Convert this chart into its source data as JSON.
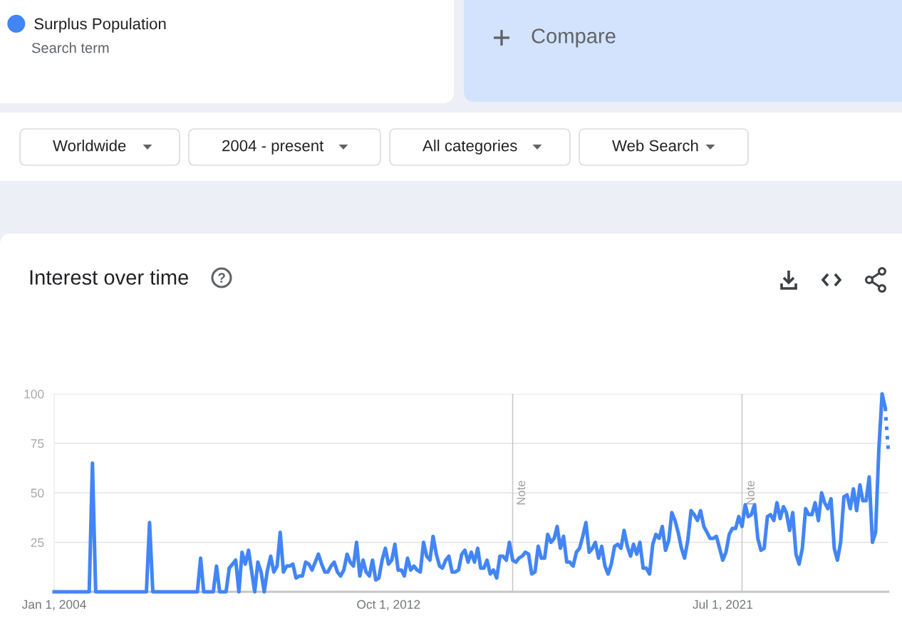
{
  "chart_data": {
    "type": "line",
    "title": "Interest over time",
    "series": [
      {
        "name": "Surplus Population",
        "color": "#4285f4",
        "x": [
          "2004-01",
          "2004-12",
          "2005-01",
          "2005-02",
          "2006-06",
          "2006-07",
          "2006-08",
          "2007-10",
          "2007-11",
          "2007-12",
          "2008-03",
          "2008-04",
          "2008-05",
          "2008-07",
          "2008-08",
          "2008-09",
          "2008-10",
          "2008-11",
          "2008-12",
          "2009-01",
          "2009-02",
          "2009-03",
          "2009-04",
          "2009-05",
          "2009-06",
          "2009-07",
          "2009-08",
          "2009-09",
          "2009-10",
          "2009-11",
          "2009-12",
          "2010-01",
          "2010-02",
          "2010-03",
          "2010-04",
          "2010-05",
          "2010-06",
          "2010-07",
          "2010-08",
          "2010-09",
          "2010-10",
          "2010-11",
          "2010-12",
          "2011-01",
          "2011-02",
          "2011-03",
          "2011-04",
          "2011-05",
          "2011-06",
          "2011-07",
          "2011-08",
          "2011-09",
          "2011-10",
          "2011-11",
          "2011-12",
          "2012-01",
          "2012-02",
          "2012-03",
          "2012-04",
          "2012-05",
          "2012-06",
          "2012-07",
          "2012-08",
          "2012-09",
          "2012-10",
          "2012-11",
          "2012-12",
          "2013-01",
          "2013-02",
          "2013-03",
          "2013-04",
          "2013-05",
          "2013-06",
          "2013-07",
          "2013-08",
          "2013-09",
          "2013-10",
          "2013-11",
          "2013-12",
          "2014-01",
          "2014-02",
          "2014-03",
          "2014-04",
          "2014-05",
          "2014-06",
          "2014-07",
          "2014-08",
          "2014-09",
          "2014-10",
          "2014-11",
          "2014-12",
          "2015-01",
          "2015-02",
          "2015-03",
          "2015-04",
          "2015-05",
          "2015-06",
          "2015-07",
          "2015-08",
          "2015-09",
          "2015-10",
          "2015-11",
          "2015-12",
          "2016-01",
          "2016-02",
          "2016-03",
          "2016-04",
          "2016-05",
          "2016-06",
          "2016-07",
          "2016-08",
          "2016-09",
          "2016-10",
          "2016-11",
          "2016-12",
          "2017-01",
          "2017-02",
          "2017-03",
          "2017-04",
          "2017-05",
          "2017-06",
          "2017-07",
          "2017-08",
          "2017-09",
          "2017-10",
          "2017-11",
          "2017-12",
          "2018-01",
          "2018-02",
          "2018-03",
          "2018-04",
          "2018-05",
          "2018-06",
          "2018-07",
          "2018-08",
          "2018-09",
          "2018-10",
          "2018-11",
          "2018-12",
          "2019-01",
          "2019-02",
          "2019-03",
          "2019-04",
          "2019-05",
          "2019-06",
          "2019-07",
          "2019-08",
          "2019-09",
          "2019-10",
          "2019-11",
          "2019-12",
          "2020-01",
          "2020-02",
          "2020-03",
          "2020-04",
          "2020-05",
          "2020-06",
          "2020-07",
          "2020-08",
          "2020-09",
          "2020-10",
          "2020-11",
          "2020-12",
          "2021-01",
          "2021-02",
          "2021-03",
          "2021-04",
          "2021-05",
          "2021-06",
          "2021-07",
          "2021-08",
          "2021-09",
          "2021-10",
          "2021-11",
          "2021-12",
          "2022-01",
          "2022-02",
          "2022-03",
          "2022-04",
          "2022-05",
          "2022-06",
          "2022-07",
          "2022-08",
          "2022-09",
          "2022-10",
          "2022-11",
          "2022-12",
          "2023-01",
          "2023-02",
          "2023-03",
          "2023-04",
          "2023-05",
          "2023-06",
          "2023-07",
          "2023-08",
          "2023-09",
          "2023-10",
          "2023-11",
          "2023-12",
          "2024-01",
          "2024-02",
          "2024-03",
          "2024-04",
          "2024-05",
          "2024-06",
          "2024-07",
          "2024-08",
          "2024-09",
          "2024-10",
          "2024-11",
          "2024-12",
          "2025-01",
          "2025-02",
          "2025-03",
          "2025-04",
          "2025-05",
          "2025-06",
          "2025-07",
          "2025-08",
          "2025-09",
          "2025-10"
        ],
        "values": [
          0,
          0,
          65,
          0,
          0,
          35,
          0,
          0,
          17,
          0,
          0,
          13,
          0,
          0,
          12,
          14,
          16,
          0,
          20,
          14,
          21,
          11,
          0,
          15,
          10,
          0,
          11,
          18,
          10,
          13,
          30,
          10,
          13,
          13,
          14,
          7,
          8,
          8,
          15,
          14,
          11,
          15,
          19,
          14,
          10,
          10,
          13,
          15,
          10,
          8,
          11,
          19,
          15,
          13,
          25,
          8,
          16,
          10,
          8,
          16,
          6,
          7,
          16,
          22,
          14,
          16,
          24,
          11,
          11,
          8,
          17,
          11,
          13,
          11,
          10,
          25,
          18,
          16,
          28,
          19,
          13,
          12,
          16,
          18,
          10,
          10,
          11,
          19,
          21,
          15,
          20,
          15,
          22,
          12,
          12,
          16,
          9,
          11,
          7,
          18,
          18,
          16,
          25,
          16,
          15,
          17,
          18,
          20,
          19,
          9,
          10,
          23,
          17,
          17,
          29,
          25,
          27,
          33,
          22,
          28,
          15,
          15,
          13,
          20,
          22,
          28,
          35,
          20,
          22,
          25,
          17,
          23,
          13,
          9,
          14,
          23,
          24,
          22,
          31,
          23,
          18,
          24,
          19,
          25,
          12,
          12,
          9,
          24,
          29,
          27,
          33,
          21,
          26,
          40,
          36,
          30,
          22,
          17,
          26,
          41,
          39,
          36,
          41,
          33,
          30,
          27,
          27,
          28,
          22,
          16,
          20,
          29,
          32,
          32,
          38,
          33,
          44,
          38,
          39,
          44,
          27,
          21,
          22,
          38,
          39,
          36,
          45,
          37,
          43,
          40,
          31,
          40,
          19,
          14,
          22,
          42,
          39,
          39,
          45,
          36,
          50,
          45,
          42,
          47,
          22,
          16,
          25,
          48,
          49,
          42,
          52,
          41,
          54,
          46,
          46,
          58,
          25,
          30,
          72,
          100,
          93
        ]
      },
      {
        "color": "#4285f4",
        "line_style": "dotted",
        "x": [
          "2025-10",
          "2025-11"
        ],
        "values": [
          93,
          70
        ]
      }
    ],
    "xlim": [
      "2004-01",
      "2025-11"
    ],
    "xticks": [
      {
        "value": "2004-01-01",
        "label": "Jan 1, 2004"
      },
      {
        "value": "2012-10-01",
        "label": "Oct 1, 2012"
      },
      {
        "value": "2021-07-01",
        "label": "Jul 1, 2021"
      }
    ],
    "ylim": [
      0,
      100
    ],
    "yticks": [
      {
        "value": 0,
        "label": null
      },
      25,
      50,
      75,
      100
    ],
    "grid": "y",
    "line_style": "solid",
    "legend": "top left",
    "ref_lines": [
      {
        "axis": "x",
        "value": "2016-01-01",
        "label": "Note",
        "color": "#c8c8c8"
      },
      {
        "axis": "x",
        "value": "2022-01-01",
        "label": "Note",
        "color": "#c8c8c8"
      }
    ],
    "annotations": [
      "Search term",
      "Compare",
      "Worldwide",
      "2004 - present",
      "All categories",
      "Web Search"
    ]
  }
}
